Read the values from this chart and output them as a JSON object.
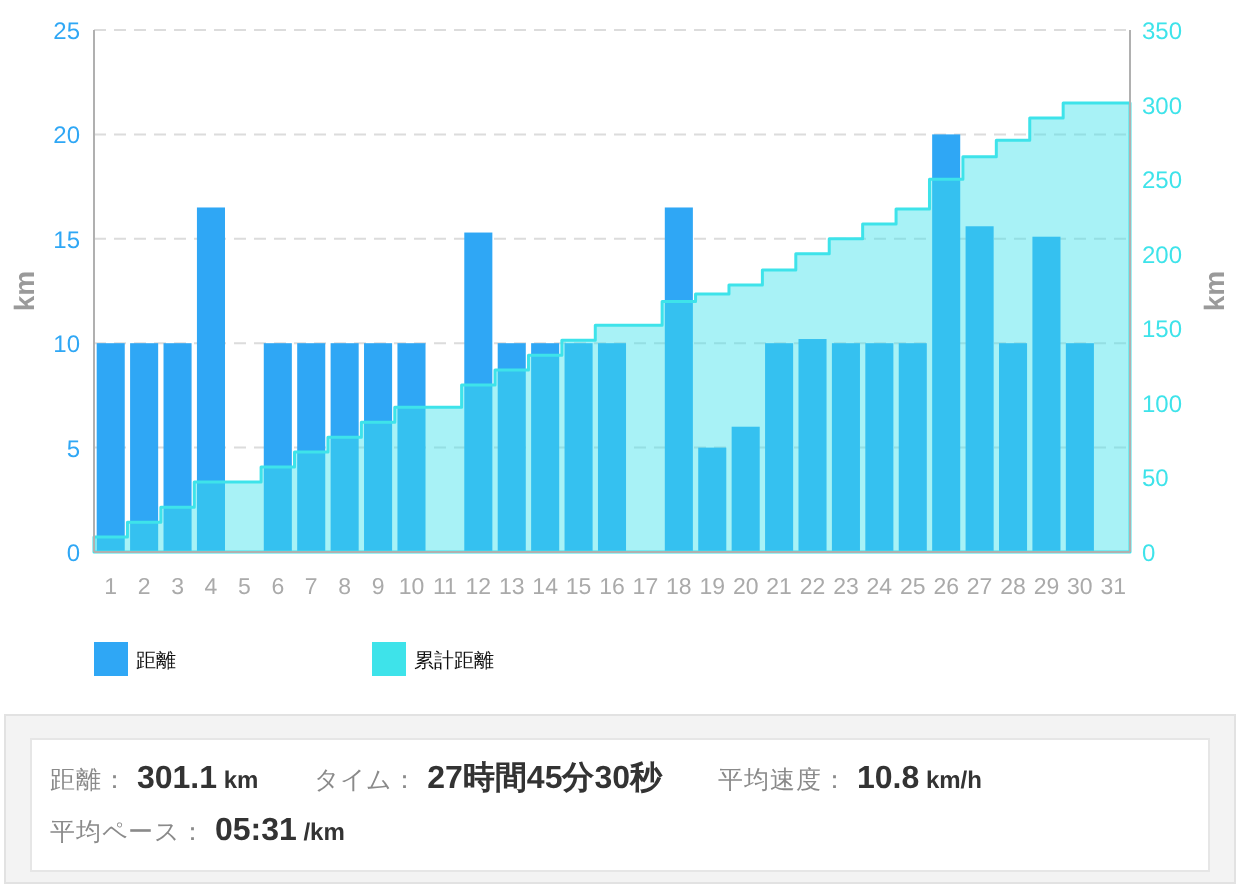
{
  "chart_data": [
    {
      "type": "bar",
      "x": [
        1,
        2,
        3,
        4,
        5,
        6,
        7,
        8,
        9,
        10,
        11,
        12,
        13,
        14,
        15,
        16,
        17,
        18,
        19,
        20,
        21,
        22,
        23,
        24,
        25,
        26,
        27,
        28,
        29,
        30,
        31
      ],
      "xlim": [
        0.5,
        31.5
      ],
      "xticks": [
        1,
        2,
        3,
        4,
        5,
        6,
        7,
        8,
        9,
        10,
        11,
        12,
        13,
        14,
        15,
        16,
        17,
        18,
        19,
        20,
        21,
        22,
        23,
        24,
        25,
        26,
        27,
        28,
        29,
        30,
        31
      ],
      "series": [
        {
          "name": "距離",
          "type": "bar",
          "color": "#2fa7f5",
          "values": [
            10,
            10,
            10,
            16.5,
            0,
            10,
            10,
            10,
            10,
            10,
            0,
            15.3,
            10,
            10,
            10,
            10,
            0,
            16.5,
            5,
            6,
            10,
            10.2,
            10,
            10,
            10,
            20,
            15.6,
            10,
            15.1,
            10,
            0
          ]
        },
        {
          "name": "累計距離",
          "type": "area",
          "axis": "y2",
          "color": "#3ee3ea",
          "x": [
            0.5,
            1.5,
            1.5,
            2.5,
            2.5,
            3.5,
            3.5,
            4.5,
            4.5,
            5.5,
            5.5,
            6.5,
            6.5,
            7.5,
            7.5,
            8.5,
            8.5,
            9.5,
            9.5,
            10.5,
            10.5,
            11.5,
            11.5,
            12.5,
            12.5,
            13.5,
            13.5,
            14.5,
            14.5,
            15.5,
            15.5,
            16.5,
            16.5,
            17.5,
            17.5,
            18.5,
            18.5,
            19.5,
            19.5,
            20.5,
            20.5,
            21.5,
            21.5,
            22.5,
            22.5,
            23.5,
            23.5,
            24.5,
            24.5,
            25.5,
            25.5,
            26.5,
            26.5,
            27.5,
            27.5,
            28.5,
            28.5,
            29.5,
            29.5,
            30.5,
            30.5,
            31.5
          ],
          "values": [
            10,
            10,
            20,
            20,
            30,
            30,
            47,
            47,
            47,
            47,
            57,
            57,
            67,
            67,
            77,
            77,
            87,
            87,
            97,
            97,
            97,
            97,
            112,
            112,
            122,
            122,
            132,
            132,
            142,
            142,
            152,
            152,
            152,
            152,
            168,
            168,
            173,
            173,
            179,
            179,
            189,
            189,
            200,
            200,
            210,
            210,
            220,
            220,
            230,
            230,
            250,
            250,
            265,
            265,
            276,
            276,
            291,
            291,
            301,
            301,
            301,
            301
          ]
        }
      ],
      "ylabel": "km",
      "y2label": "km",
      "ylim": [
        0,
        25
      ],
      "yticks": [
        0,
        5,
        10,
        15,
        20,
        25
      ],
      "y2lim": [
        0,
        350
      ],
      "y2ticks": [
        0,
        50,
        100,
        150,
        200,
        250,
        300,
        350
      ],
      "grid": "y",
      "legend": "bottom"
    },
    {
      "type": "other",
      "annotations": [
        "距離： 301.1 km",
        "タイム： 27時間45分30秒",
        "平均速度： 10.8 km/h",
        "平均ペース： 05:31 /km"
      ]
    }
  ]
}
